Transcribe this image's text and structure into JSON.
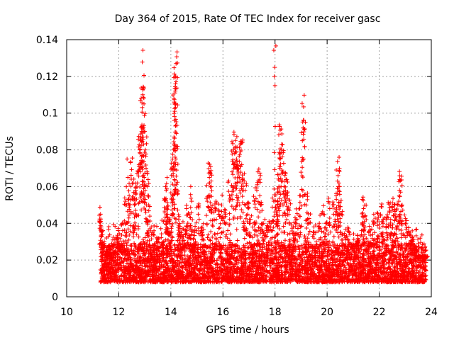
{
  "chart_data": {
    "type": "scatter",
    "title": "Day 364 of 2015, Rate Of TEC Index for receiver gasc",
    "xlabel": "GPS time / hours",
    "ylabel": "ROTI / TECUs",
    "xlim": [
      10,
      24
    ],
    "ylim": [
      0,
      0.14
    ],
    "xticks": [
      10,
      12,
      14,
      16,
      18,
      20,
      22,
      24
    ],
    "xtick_labels": [
      "10",
      "12",
      "14",
      "16",
      "18",
      "20",
      "22",
      "24"
    ],
    "yticks": [
      0,
      0.02,
      0.04,
      0.06,
      0.08,
      0.1,
      0.12,
      0.14
    ],
    "ytick_labels": [
      "0",
      "0.02",
      "0.04",
      "0.06",
      "0.08",
      "0.1",
      "0.12",
      "0.14"
    ],
    "grid": true,
    "marker": "+",
    "color": "#ff0000",
    "data_range_hours": [
      11.3,
      23.8
    ],
    "baseline_band": [
      0.004,
      0.025
    ],
    "series": [
      {
        "name": "ROTI",
        "points": [
          [
            11.3,
            0.045
          ],
          [
            11.32,
            0.038
          ],
          [
            11.35,
            0.033
          ],
          [
            11.4,
            0.028
          ],
          [
            11.55,
            0.024
          ],
          [
            11.7,
            0.022
          ],
          [
            11.95,
            0.03
          ],
          [
            12.05,
            0.028
          ],
          [
            12.15,
            0.036
          ],
          [
            12.25,
            0.05
          ],
          [
            12.35,
            0.065
          ],
          [
            12.4,
            0.055
          ],
          [
            12.48,
            0.064
          ],
          [
            12.55,
            0.062
          ],
          [
            12.6,
            0.05
          ],
          [
            12.65,
            0.058
          ],
          [
            12.72,
            0.062
          ],
          [
            12.8,
            0.08
          ],
          [
            12.82,
            0.072
          ],
          [
            12.85,
            0.085
          ],
          [
            12.88,
            0.09
          ],
          [
            12.9,
            0.103
          ],
          [
            12.92,
            0.11
          ],
          [
            12.95,
            0.114
          ],
          [
            12.97,
            0.105
          ],
          [
            13.0,
            0.09
          ],
          [
            13.02,
            0.08
          ],
          [
            13.05,
            0.07
          ],
          [
            13.1,
            0.06
          ],
          [
            13.15,
            0.05
          ],
          [
            13.3,
            0.035
          ],
          [
            13.5,
            0.03
          ],
          [
            13.7,
            0.028
          ],
          [
            13.8,
            0.06
          ],
          [
            13.82,
            0.058
          ],
          [
            13.85,
            0.049
          ],
          [
            13.88,
            0.045
          ],
          [
            13.95,
            0.04
          ],
          [
            14.0,
            0.035
          ],
          [
            14.05,
            0.07
          ],
          [
            14.08,
            0.069
          ],
          [
            14.1,
            0.071
          ],
          [
            14.12,
            0.087
          ],
          [
            14.13,
            0.096
          ],
          [
            14.15,
            0.101
          ],
          [
            14.17,
            0.112
          ],
          [
            14.18,
            0.116
          ],
          [
            14.19,
            0.12
          ],
          [
            14.2,
            0.127
          ],
          [
            14.22,
            0.069
          ],
          [
            14.3,
            0.042
          ],
          [
            14.4,
            0.035
          ],
          [
            14.6,
            0.048
          ],
          [
            14.7,
            0.045
          ],
          [
            14.8,
            0.052
          ],
          [
            14.9,
            0.035
          ],
          [
            15.05,
            0.045
          ],
          [
            15.2,
            0.038
          ],
          [
            15.4,
            0.052
          ],
          [
            15.48,
            0.065
          ],
          [
            15.52,
            0.067
          ],
          [
            15.55,
            0.06
          ],
          [
            15.7,
            0.048
          ],
          [
            15.85,
            0.045
          ],
          [
            15.95,
            0.05
          ],
          [
            16.1,
            0.045
          ],
          [
            16.25,
            0.055
          ],
          [
            16.35,
            0.068
          ],
          [
            16.4,
            0.072
          ],
          [
            16.45,
            0.078
          ],
          [
            16.48,
            0.079
          ],
          [
            16.52,
            0.075
          ],
          [
            16.58,
            0.07
          ],
          [
            16.62,
            0.065
          ],
          [
            16.68,
            0.079
          ],
          [
            16.72,
            0.072
          ],
          [
            16.78,
            0.06
          ],
          [
            16.85,
            0.058
          ],
          [
            16.95,
            0.045
          ],
          [
            17.05,
            0.04
          ],
          [
            17.2,
            0.052
          ],
          [
            17.3,
            0.058
          ],
          [
            17.38,
            0.063
          ],
          [
            17.45,
            0.05
          ],
          [
            17.55,
            0.04
          ],
          [
            17.7,
            0.035
          ],
          [
            17.85,
            0.04
          ],
          [
            17.95,
            0.052
          ],
          [
            18.0,
            0.115
          ],
          [
            18.05,
            0.045
          ],
          [
            18.1,
            0.052
          ],
          [
            18.15,
            0.06
          ],
          [
            18.18,
            0.07
          ],
          [
            18.2,
            0.078
          ],
          [
            18.25,
            0.083
          ],
          [
            18.3,
            0.068
          ],
          [
            18.35,
            0.06
          ],
          [
            18.4,
            0.058
          ],
          [
            18.48,
            0.055
          ],
          [
            18.55,
            0.047
          ],
          [
            18.7,
            0.038
          ],
          [
            18.8,
            0.042
          ],
          [
            18.95,
            0.048
          ],
          [
            19.05,
            0.085
          ],
          [
            19.08,
            0.092
          ],
          [
            19.12,
            0.091
          ],
          [
            19.2,
            0.05
          ],
          [
            19.3,
            0.04
          ],
          [
            19.5,
            0.035
          ],
          [
            19.7,
            0.04
          ],
          [
            19.85,
            0.045
          ],
          [
            19.95,
            0.04
          ],
          [
            20.1,
            0.048
          ],
          [
            20.25,
            0.045
          ],
          [
            20.35,
            0.055
          ],
          [
            20.4,
            0.063
          ],
          [
            20.42,
            0.066
          ],
          [
            20.48,
            0.06
          ],
          [
            20.55,
            0.045
          ],
          [
            20.7,
            0.032
          ],
          [
            20.85,
            0.035
          ],
          [
            21.0,
            0.028
          ],
          [
            21.2,
            0.03
          ],
          [
            21.35,
            0.04
          ],
          [
            21.4,
            0.048
          ],
          [
            21.45,
            0.044
          ],
          [
            21.6,
            0.035
          ],
          [
            21.8,
            0.04
          ],
          [
            21.95,
            0.042
          ],
          [
            22.05,
            0.045
          ],
          [
            22.15,
            0.04
          ],
          [
            22.3,
            0.043
          ],
          [
            22.4,
            0.046
          ],
          [
            22.5,
            0.047
          ],
          [
            22.55,
            0.044
          ],
          [
            22.65,
            0.042
          ],
          [
            22.72,
            0.05
          ],
          [
            22.78,
            0.058
          ],
          [
            22.82,
            0.057
          ],
          [
            22.88,
            0.05
          ],
          [
            23.0,
            0.04
          ],
          [
            23.15,
            0.035
          ],
          [
            23.25,
            0.03
          ],
          [
            23.4,
            0.025
          ],
          [
            23.55,
            0.022
          ],
          [
            23.7,
            0.02
          ],
          [
            23.8,
            0.022
          ]
        ]
      }
    ]
  }
}
